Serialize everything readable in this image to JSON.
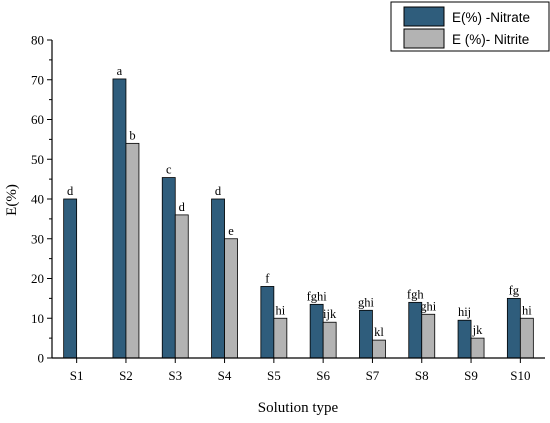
{
  "chart_data": {
    "type": "bar",
    "xlabel": "Solution type",
    "ylabel": "E(%)",
    "ylim": [
      0,
      80
    ],
    "yticks": [
      0,
      10,
      20,
      30,
      40,
      50,
      60,
      70,
      80
    ],
    "categories": [
      "S1",
      "S2",
      "S3",
      "S4",
      "S5",
      "S6",
      "S7",
      "S8",
      "S9",
      "S10"
    ],
    "series": [
      {
        "name": "E(%) -Nitrate",
        "color": "#2f5d7c",
        "values": [
          40,
          70.2,
          45.4,
          40,
          18,
          13.5,
          12,
          14,
          9.5,
          15
        ],
        "labels": [
          "d",
          "a",
          "c",
          "d",
          "f",
          "fghi",
          "ghi",
          "fgh",
          "hij",
          "fg"
        ]
      },
      {
        "name": "E (%)- Nitrite",
        "color": "#b3b3b3",
        "values": [
          null,
          54,
          36,
          30,
          10,
          9,
          4.5,
          11,
          5,
          10
        ],
        "labels": [
          null,
          "b",
          "d",
          "e",
          "hi",
          "ijk",
          "kl",
          "ghi",
          "jk",
          "hi"
        ]
      }
    ],
    "legend": "top-right",
    "grid": false
  }
}
